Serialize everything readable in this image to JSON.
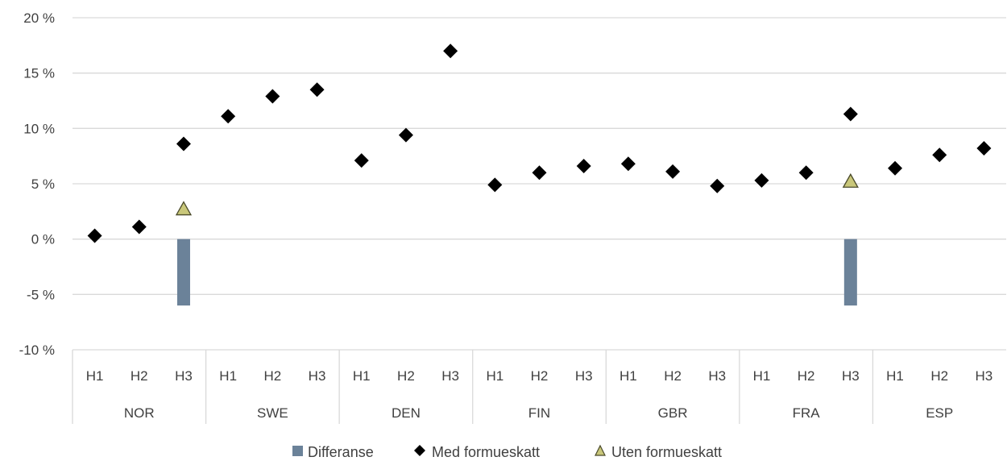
{
  "chart_data": {
    "type": "scatter",
    "groups": [
      "NOR",
      "SWE",
      "DEN",
      "FIN",
      "GBR",
      "FRA",
      "ESP"
    ],
    "subcategories": [
      "H1",
      "H2",
      "H3"
    ],
    "y_ticks": [
      "20 %",
      "15 %",
      "10 %",
      "5 %",
      "0 %",
      "-5 %",
      "-10 %"
    ],
    "ylim": [
      -10,
      20
    ],
    "grid": true,
    "legend_position": "bottom",
    "series": [
      {
        "name": "Differanse",
        "type": "bar",
        "color": "#6b8299",
        "values": [
          null,
          null,
          -6.0,
          null,
          null,
          null,
          null,
          null,
          null,
          null,
          null,
          null,
          null,
          null,
          null,
          null,
          null,
          -6.0,
          null,
          null,
          null
        ]
      },
      {
        "name": "Med formueskatt",
        "type": "scatter",
        "marker": "diamond",
        "color": "#000000",
        "values": [
          0.3,
          1.1,
          8.6,
          11.1,
          12.9,
          13.5,
          7.1,
          9.4,
          17.0,
          4.9,
          6.0,
          6.6,
          6.8,
          6.1,
          4.8,
          5.3,
          6.0,
          11.3,
          6.4,
          7.6,
          8.2
        ]
      },
      {
        "name": "Uten formueskatt",
        "type": "scatter",
        "marker": "triangle",
        "color": "#c9c77a",
        "values": [
          null,
          null,
          2.7,
          null,
          null,
          null,
          null,
          null,
          null,
          null,
          null,
          null,
          null,
          null,
          null,
          null,
          null,
          5.2,
          null,
          null,
          null
        ]
      }
    ]
  },
  "legend": {
    "differanse": "Differanse",
    "med": "Med formueskatt",
    "uten": "Uten formueskatt"
  }
}
